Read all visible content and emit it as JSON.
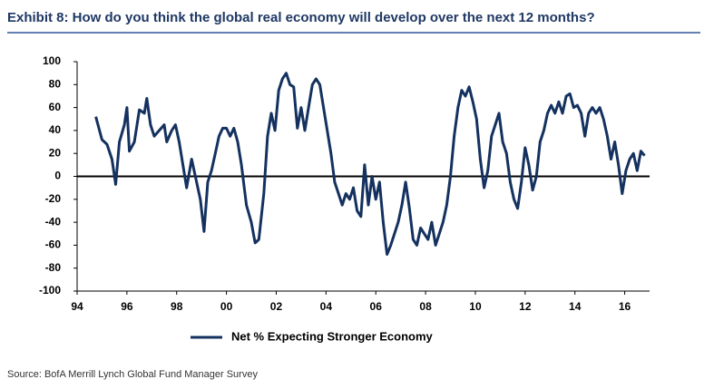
{
  "chart_data": {
    "type": "line",
    "title": "Exhibit 8: How do you think the global real economy will develop over the next 12 months?",
    "source": "Source: BofA Merrill Lynch Global Fund Manager Survey",
    "xlim": [
      1994,
      2017
    ],
    "ylim": [
      -100,
      100
    ],
    "xticks": [
      {
        "value": 1994,
        "label": "94"
      },
      {
        "value": 1996,
        "label": "96"
      },
      {
        "value": 1998,
        "label": "98"
      },
      {
        "value": 2000,
        "label": "00"
      },
      {
        "value": 2002,
        "label": "02"
      },
      {
        "value": 2004,
        "label": "04"
      },
      {
        "value": 2006,
        "label": "06"
      },
      {
        "value": 2008,
        "label": "08"
      },
      {
        "value": 2010,
        "label": "10"
      },
      {
        "value": 2012,
        "label": "12"
      },
      {
        "value": 2014,
        "label": "14"
      },
      {
        "value": 2016,
        "label": "16"
      }
    ],
    "yticks": [
      -100,
      -80,
      -60,
      -40,
      -20,
      0,
      20,
      40,
      60,
      80,
      100
    ],
    "legend": "bottom",
    "x": [
      1994.75,
      1995.0,
      1995.2,
      1995.4,
      1995.55,
      1995.7,
      1995.9,
      1996.0,
      1996.1,
      1996.3,
      1996.5,
      1996.7,
      1996.8,
      1996.95,
      1997.1,
      1997.3,
      1997.5,
      1997.6,
      1997.8,
      1997.95,
      1998.1,
      1998.25,
      1998.4,
      1998.6,
      1998.8,
      1998.95,
      1999.1,
      1999.25,
      1999.4,
      1999.55,
      1999.7,
      1999.85,
      2000.0,
      2000.15,
      2000.3,
      2000.45,
      2000.6,
      2000.8,
      2001.0,
      2001.15,
      2001.3,
      2001.5,
      2001.65,
      2001.8,
      2001.95,
      2002.1,
      2002.25,
      2002.4,
      2002.55,
      2002.7,
      2002.85,
      2003.0,
      2003.15,
      2003.3,
      2003.45,
      2003.6,
      2003.75,
      2003.9,
      2004.05,
      2004.2,
      2004.35,
      2004.5,
      2004.65,
      2004.8,
      2004.95,
      2005.1,
      2005.25,
      2005.4,
      2005.55,
      2005.7,
      2005.85,
      2006.0,
      2006.15,
      2006.3,
      2006.45,
      2006.6,
      2006.75,
      2006.9,
      2007.05,
      2007.2,
      2007.35,
      2007.5,
      2007.65,
      2007.8,
      2007.95,
      2008.1,
      2008.25,
      2008.4,
      2008.55,
      2008.7,
      2008.85,
      2009.0,
      2009.15,
      2009.3,
      2009.45,
      2009.6,
      2009.75,
      2009.9,
      2010.05,
      2010.2,
      2010.35,
      2010.5,
      2010.65,
      2010.8,
      2010.95,
      2011.1,
      2011.25,
      2011.4,
      2011.55,
      2011.7,
      2011.85,
      2012.0,
      2012.15,
      2012.3,
      2012.45,
      2012.6,
      2012.75,
      2012.9,
      2013.05,
      2013.2,
      2013.35,
      2013.5,
      2013.65,
      2013.8,
      2013.95,
      2014.1,
      2014.25,
      2014.4,
      2014.55,
      2014.7,
      2014.85,
      2015.0,
      2015.15,
      2015.3,
      2015.45,
      2015.6,
      2015.75,
      2015.9,
      2016.05,
      2016.2,
      2016.35,
      2016.5,
      2016.65,
      2016.8
    ],
    "series": [
      {
        "name": "Net % Expecting Stronger Economy",
        "color": "#14315f",
        "values": [
          52,
          32,
          28,
          15,
          -7,
          30,
          45,
          60,
          22,
          30,
          58,
          55,
          68,
          45,
          35,
          40,
          45,
          30,
          40,
          45,
          30,
          10,
          -10,
          15,
          -5,
          -20,
          -48,
          -5,
          5,
          20,
          35,
          42,
          42,
          35,
          42,
          30,
          10,
          -25,
          -40,
          -58,
          -55,
          -15,
          35,
          55,
          40,
          75,
          85,
          90,
          80,
          78,
          42,
          60,
          40,
          60,
          80,
          85,
          80,
          60,
          40,
          20,
          -5,
          -15,
          -25,
          -15,
          -20,
          -10,
          -30,
          -35,
          10,
          -25,
          0,
          -20,
          -5,
          -40,
          -68,
          -60,
          -50,
          -40,
          -25,
          -5,
          -28,
          -55,
          -60,
          -45,
          -50,
          -55,
          -40,
          -60,
          -50,
          -40,
          -25,
          0,
          35,
          60,
          75,
          70,
          78,
          65,
          50,
          15,
          -10,
          5,
          35,
          45,
          55,
          30,
          20,
          -5,
          -20,
          -28,
          -5,
          25,
          10,
          -12,
          0,
          30,
          40,
          55,
          62,
          55,
          65,
          55,
          70,
          72,
          60,
          62,
          55,
          35,
          55,
          60,
          55,
          60,
          50,
          35,
          15,
          30,
          10,
          -15,
          5,
          15,
          20,
          5,
          22,
          18
        ]
      }
    ]
  }
}
